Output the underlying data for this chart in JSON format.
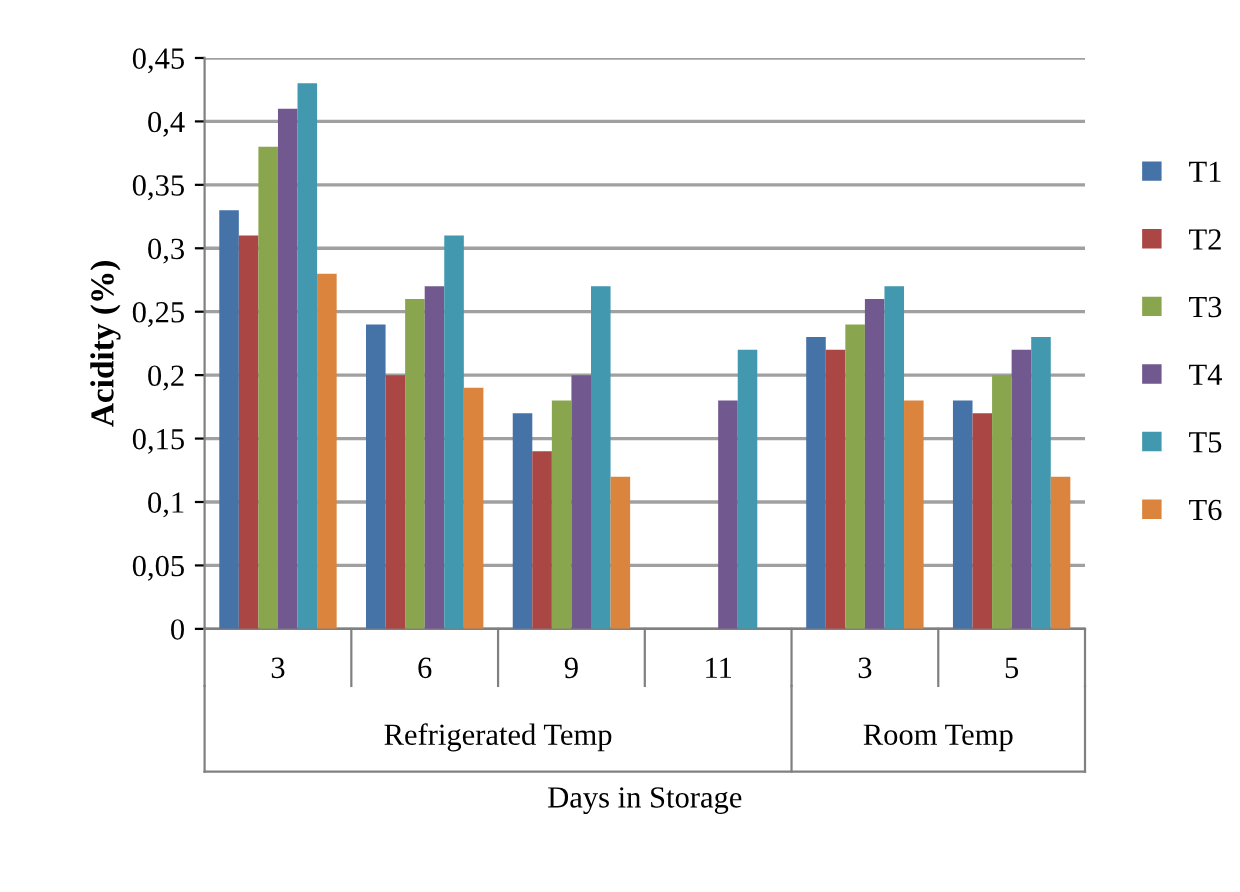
{
  "chart_data": {
    "type": "bar",
    "xlabel": "Days in Storage",
    "ylabel": "Acidity (%)",
    "categories": [
      "3",
      "6",
      "9",
      "11",
      "3",
      "5"
    ],
    "series": [
      {
        "name": "T1",
        "color": "#4572a7",
        "values": [
          0.33,
          0.24,
          0.17,
          null,
          0.23,
          0.18
        ]
      },
      {
        "name": "T2",
        "color": "#aa4643",
        "values": [
          0.31,
          0.2,
          0.14,
          null,
          0.22,
          0.17
        ]
      },
      {
        "name": "T3",
        "color": "#89a54e",
        "values": [
          0.38,
          0.26,
          0.18,
          null,
          0.24,
          0.2
        ]
      },
      {
        "name": "T4",
        "color": "#71588f",
        "values": [
          0.41,
          0.27,
          0.2,
          0.18,
          0.26,
          0.22
        ]
      },
      {
        "name": "T5",
        "color": "#4198af",
        "values": [
          0.43,
          0.31,
          0.27,
          0.22,
          0.27,
          0.23
        ]
      },
      {
        "name": "T6",
        "color": "#db843d",
        "values": [
          0.28,
          0.19,
          0.12,
          null,
          0.18,
          0.12
        ]
      }
    ],
    "ylim": [
      0,
      0.45
    ],
    "yticks": [
      0,
      {
        "value": 0.05,
        "label": "0,05"
      },
      {
        "value": 0.1,
        "label": "0,1"
      },
      {
        "value": 0.15,
        "label": "0,15"
      },
      {
        "value": 0.2,
        "label": "0,2"
      },
      {
        "value": 0.25,
        "label": "0,25"
      },
      {
        "value": 0.3,
        "label": "0,3"
      },
      {
        "value": 0.35,
        "label": "0,35"
      },
      {
        "value": 0.4,
        "label": "0,4"
      },
      {
        "value": 0.45,
        "label": "0,45"
      }
    ],
    "annotations": [
      "Refrigerated Temp",
      "Room Temp"
    ],
    "grid": "y",
    "legend": "right"
  }
}
